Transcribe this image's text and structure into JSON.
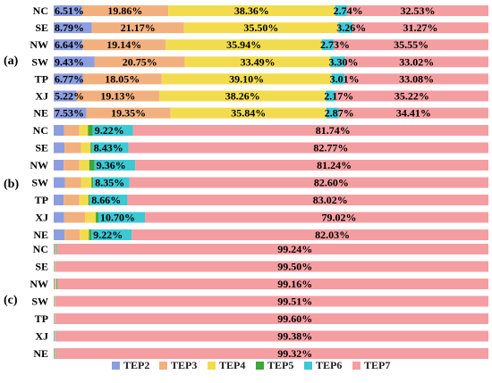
{
  "chart_data": {
    "type": "bar",
    "orientation": "horizontal",
    "stacked": true,
    "normalized_percent": true,
    "legend_position": "bottom",
    "series_names": [
      "TEP2",
      "TEP3",
      "TEP4",
      "TEP5",
      "TEP6",
      "TEP7"
    ],
    "colors": [
      "#8c9ee0",
      "#f2b07e",
      "#f2dc4e",
      "#3aa83a",
      "#3cc9d4",
      "#f49ea2"
    ],
    "panels": [
      {
        "label": "(a)",
        "categories": [
          "NC",
          "SE",
          "NW",
          "SW",
          "TP",
          "XJ",
          "NE"
        ],
        "values": [
          [
            6.51,
            19.86,
            38.36,
            0.0,
            2.74,
            32.53
          ],
          [
            8.79,
            21.17,
            35.5,
            0.0,
            3.26,
            31.27
          ],
          [
            6.64,
            19.14,
            35.94,
            0.0,
            2.73,
            35.55
          ],
          [
            9.43,
            20.75,
            33.49,
            0.0,
            3.3,
            33.02
          ],
          [
            6.77,
            18.05,
            39.1,
            0.0,
            3.01,
            33.08
          ],
          [
            5.22,
            19.13,
            38.26,
            0.0,
            2.17,
            35.22
          ],
          [
            7.53,
            19.35,
            35.84,
            0.0,
            2.87,
            34.41
          ]
        ],
        "labels": [
          [
            "6.51%",
            "19.86%",
            "38.36%",
            "2.74%",
            "32.53%"
          ],
          [
            "8.79%",
            "21.17%",
            "35.50%",
            "3.26%",
            "31.27%"
          ],
          [
            "6.64%",
            "19.14%",
            "35.94%",
            "2.73%",
            "35.55%"
          ],
          [
            "9.43%",
            "20.75%",
            "33.49%",
            "3.30%",
            "33.02%"
          ],
          [
            "6.77%",
            "18.05%",
            "39.10%",
            "3.01%",
            "33.08%"
          ],
          [
            "5.22%",
            "19.13%",
            "38.26%",
            "2.17%",
            "35.22%"
          ],
          [
            "7.53%",
            "19.35%",
            "35.84%",
            "2.87%",
            "34.41%"
          ]
        ]
      },
      {
        "label": "(b)",
        "categories": [
          "NC",
          "SE",
          "NW",
          "SW",
          "TP",
          "XJ",
          "NE"
        ],
        "values": [
          [
            2.4,
            3.5,
            2.0,
            1.1,
            9.22,
            81.74
          ],
          [
            2.5,
            3.8,
            2.2,
            0.3,
            8.43,
            82.77
          ],
          [
            2.3,
            3.6,
            2.3,
            1.2,
            9.36,
            81.24
          ],
          [
            2.6,
            3.7,
            2.4,
            0.4,
            8.35,
            82.6
          ],
          [
            2.3,
            3.6,
            2.1,
            0.3,
            8.66,
            83.02
          ],
          [
            2.4,
            4.8,
            2.5,
            0.6,
            10.7,
            79.02
          ],
          [
            2.5,
            3.5,
            2.1,
            0.6,
            9.22,
            82.03
          ]
        ],
        "labels": [
          [
            "9.22%",
            "81.74%"
          ],
          [
            "8.43%",
            "82.77%"
          ],
          [
            "9.36%",
            "81.24%"
          ],
          [
            "8.35%",
            "82.60%"
          ],
          [
            "8.66%",
            "83.02%"
          ],
          [
            "10.70%",
            "79.02%"
          ],
          [
            "9.22%",
            "82.03%"
          ]
        ]
      },
      {
        "label": "(c)",
        "categories": [
          "NC",
          "SE",
          "NW",
          "SW",
          "TP",
          "XJ",
          "NE"
        ],
        "values": [
          [
            0.2,
            0.2,
            0.1,
            0.1,
            0.16,
            99.24
          ],
          [
            0.15,
            0.15,
            0.1,
            0.05,
            0.05,
            99.5
          ],
          [
            0.2,
            0.2,
            0.2,
            0.12,
            0.12,
            99.16
          ],
          [
            0.15,
            0.15,
            0.1,
            0.05,
            0.04,
            99.51
          ],
          [
            0.12,
            0.12,
            0.08,
            0.04,
            0.04,
            99.6
          ],
          [
            0.2,
            0.15,
            0.12,
            0.08,
            0.07,
            99.38
          ],
          [
            0.2,
            0.18,
            0.12,
            0.1,
            0.08,
            99.32
          ]
        ],
        "labels": [
          [
            "99.24%"
          ],
          [
            "99.50%"
          ],
          [
            "99.16%"
          ],
          [
            "99.51%"
          ],
          [
            "99.60%"
          ],
          [
            "99.38%"
          ],
          [
            "99.32%"
          ]
        ]
      }
    ]
  }
}
